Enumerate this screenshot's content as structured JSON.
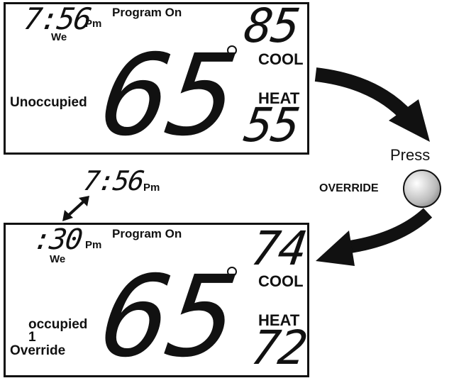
{
  "before": {
    "time": "7:56",
    "ampm": "Pm",
    "day": "We",
    "program": "Program On",
    "cool_setpoint": "85",
    "cool_label": "COOL",
    "heat_setpoint": "55",
    "heat_label": "HEAT",
    "temperature": "65",
    "mode": "Unoccupied"
  },
  "action": {
    "press_label": "Press",
    "button_label": "OVERRIDE"
  },
  "timer": {
    "time": "7:56",
    "ampm": "Pm"
  },
  "after": {
    "time": ":30",
    "ampm": "Pm",
    "day": "We",
    "program": "Program On",
    "cool_setpoint": "74",
    "cool_label": "COOL",
    "heat_setpoint": "72",
    "heat_label": "HEAT",
    "temperature": "65",
    "mode_line1": "occupied",
    "mode_line2": "1",
    "mode_line3": "Override"
  }
}
